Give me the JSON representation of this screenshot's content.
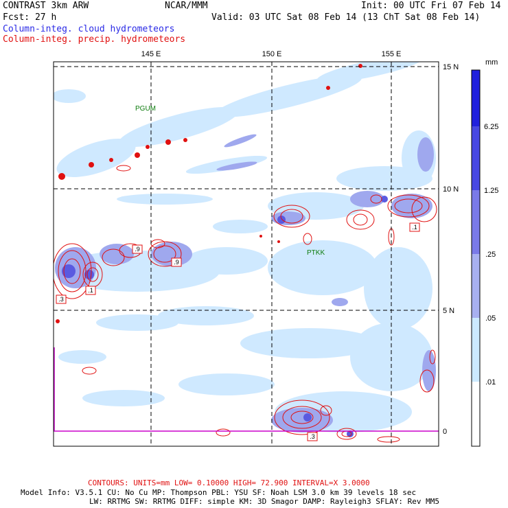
{
  "header": {
    "model": "CONTRAST  3km ARW",
    "center": "NCAR/MMM",
    "init": "Init: 00 UTC Fri 07 Feb 14",
    "fcst": "Fcst:   27 h",
    "valid": "Valid: 03 UTC Sat 08 Feb 14 (13 ChT Sat 08 Feb 14)",
    "field1": "Column-integ. cloud hydrometeors",
    "field2": "Column-integ. precip. hydrometeors"
  },
  "map": {
    "lon_labels": [
      "145 E",
      "150 E",
      "155 E"
    ],
    "lat_labels": [
      "15 N",
      "10 N",
      "5 N",
      "0"
    ],
    "stations": [
      "PGUM",
      "PTKK"
    ],
    "contour_labels": [
      ".9",
      ".9",
      ".1",
      ".1",
      ".3",
      ".1",
      ".3"
    ],
    "colors": {
      "light": "#cfe9ff",
      "mid": "#9fa8ee",
      "dark": "#5a5ae0",
      "deep": "#2a2ae6",
      "contour": "#e01010",
      "station": "#0a7a0a",
      "equator": "#cc00cc"
    }
  },
  "colorbar": {
    "unit": "mm",
    "ticks": [
      "6.25",
      "1.25",
      ".25",
      ".05",
      ".01"
    ],
    "colors": [
      "#2020dd",
      "#4848e2",
      "#7a7ae8",
      "#a8b0f0",
      "#cceaff",
      "#e6f6ff",
      "#ffffff"
    ]
  },
  "footer": {
    "contours": "CONTOURS:  UNITS=mm  LOW= 0.10000      HIGH=  72.900      INTERVAL=X  3.0000",
    "line1": "Model Info: V3.5.1    CU: No Cu     MP: Thompson    PBL: YSU      SF: Noah LSM     3.0 km  39 levels   18 sec",
    "line2": "LW: RRTMG    SW: RRTMG   DIFF: simple KM: 3D Smagor DAMP: Rayleigh3  SFLAY: Rev MM5"
  }
}
